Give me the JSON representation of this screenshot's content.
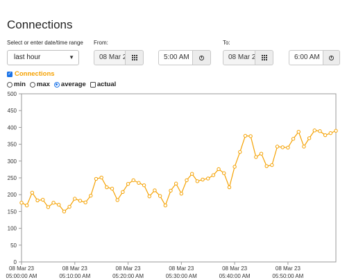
{
  "page": {
    "title": "Connections"
  },
  "controls": {
    "range_label": "Select or enter date/time range",
    "range_value": "last hour",
    "from_label": "From:",
    "from_date": "08 Mar 2",
    "from_time": "5:00 AM",
    "to_label": "To:",
    "to_date": "08 Mar 2",
    "to_time": "6:00 AM"
  },
  "legend": {
    "series_label": "Connections",
    "series_checked": true,
    "options": [
      {
        "label": "min",
        "kind": "radio",
        "selected": false
      },
      {
        "label": "max",
        "kind": "radio",
        "selected": false
      },
      {
        "label": "average",
        "kind": "radio",
        "selected": true
      },
      {
        "label": "actual",
        "kind": "checkbox",
        "selected": false
      }
    ]
  },
  "colors": {
    "series": "#f5a100",
    "checkbox": "#1a73e8"
  },
  "chart_data": {
    "type": "line",
    "title": "",
    "xlabel": "",
    "ylabel": "",
    "ylim": [
      0,
      500
    ],
    "y_ticks": [
      0,
      50,
      100,
      150,
      200,
      250,
      300,
      350,
      400,
      450,
      500
    ],
    "x_domain": [
      "05:00:00",
      "05:59:00"
    ],
    "x_ticks": [
      {
        "minute": 0,
        "line1": "08 Mar 23",
        "line2": "05:00:00 AM"
      },
      {
        "minute": 10,
        "line1": "08 Mar 23",
        "line2": "05:10:00 AM"
      },
      {
        "minute": 20,
        "line1": "08 Mar 23",
        "line2": "05:20:00 AM"
      },
      {
        "minute": 30,
        "line1": "08 Mar 23",
        "line2": "05:30:00 AM"
      },
      {
        "minute": 40,
        "line1": "08 Mar 23",
        "line2": "05:40:00 AM"
      },
      {
        "minute": 50,
        "line1": "08 Mar 23",
        "line2": "05:50:00 AM"
      }
    ],
    "grid": false,
    "series": [
      {
        "name": "Connections",
        "x_minutes": [
          0,
          1,
          2,
          3,
          4,
          5,
          6,
          7,
          8,
          9,
          10,
          11,
          12,
          13,
          14,
          15,
          16,
          17,
          18,
          19,
          20,
          21,
          22,
          23,
          24,
          25,
          26,
          27,
          28,
          29,
          30,
          31,
          32,
          33,
          34,
          35,
          36,
          37,
          38,
          39,
          40,
          41,
          42,
          43,
          44,
          45,
          46,
          47,
          48,
          49,
          50,
          51,
          52,
          53,
          54,
          55,
          56,
          57,
          58,
          59
        ],
        "values": [
          176,
          168,
          206,
          183,
          185,
          163,
          176,
          170,
          150,
          164,
          188,
          182,
          177,
          197,
          247,
          251,
          222,
          218,
          184,
          208,
          232,
          243,
          235,
          228,
          195,
          213,
          196,
          168,
          212,
          233,
          203,
          243,
          262,
          240,
          245,
          248,
          258,
          276,
          264,
          222,
          283,
          327,
          375,
          374,
          312,
          322,
          285,
          288,
          343,
          341,
          340,
          366,
          387,
          343,
          368,
          391,
          389,
          377,
          383,
          390
        ]
      }
    ]
  }
}
